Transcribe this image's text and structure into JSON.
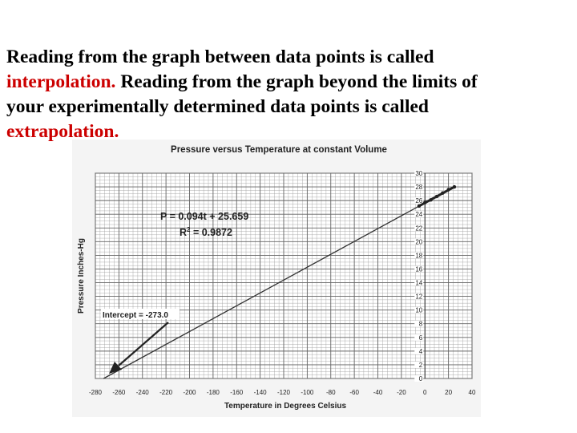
{
  "text": {
    "line1": "Reading from the graph between data points is called",
    "term1": "interpolation.",
    "line2_rest": " Reading from the graph beyond the limits of",
    "line3": "your experimentally determined data points is called",
    "term2": "extrapolation."
  },
  "colors": {
    "highlight": "#cc0000",
    "grid": "#9a9a9a",
    "line": "#333333",
    "paper": "#f4f4f4"
  },
  "chart_data": {
    "type": "line",
    "title": "Pressure versus Temperature at constant Volume",
    "xlabel": "Temperature in Degrees Celsius",
    "ylabel": "Pressure Inches-Hg",
    "xlim": [
      -280,
      40
    ],
    "ylim": [
      0,
      30
    ],
    "x_ticks": [
      -280,
      -260,
      -240,
      -220,
      -200,
      -180,
      -160,
      -140,
      -120,
      -100,
      -80,
      -60,
      -40,
      -20,
      0,
      20,
      40
    ],
    "y_ticks": [
      0,
      2,
      4,
      6,
      8,
      10,
      12,
      14,
      16,
      18,
      20,
      22,
      24,
      26,
      28,
      30
    ],
    "grid": true,
    "series": [
      {
        "role": "fit-line",
        "x": [
          -273.0,
          0
        ],
        "y": [
          0,
          25.659
        ]
      },
      {
        "role": "measured-data",
        "x": [
          -5,
          0,
          5,
          10,
          15,
          20,
          25
        ],
        "y": [
          25.2,
          25.7,
          26.1,
          26.6,
          27.1,
          27.6,
          28.0
        ]
      }
    ],
    "annotations": {
      "equation": "P = 0.094t + 25.659",
      "r2_label": "R",
      "r2_exp": "2",
      "r2_value": " = 0.9872",
      "intercept": "Intercept = -273.0"
    }
  }
}
